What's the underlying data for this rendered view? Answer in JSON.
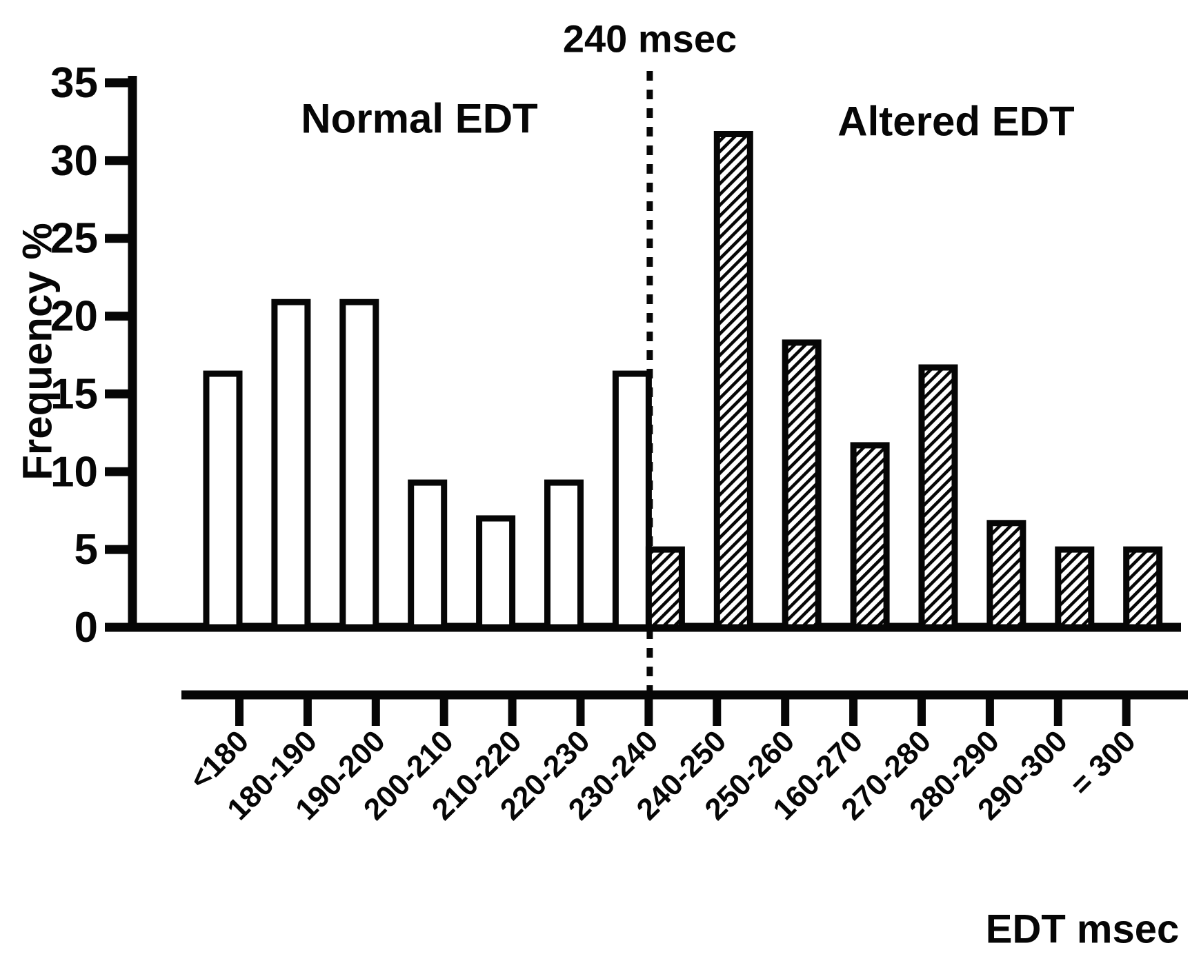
{
  "figure": {
    "background": "#ffffff",
    "ink": "#060606"
  },
  "chart_data": {
    "type": "bar",
    "title": "",
    "ylabel": "Frequency %",
    "xlabel": "EDT msec",
    "ylim": [
      0,
      35
    ],
    "yticks": [
      35,
      30,
      25,
      20,
      15,
      10,
      5,
      0
    ],
    "x_tick_labels": [
      "<180",
      "180-190",
      "190-200",
      "200-210",
      "210-220",
      "220-230",
      "230-240",
      "240-250",
      "250-260",
      "160-270",
      "270-280",
      "280-290",
      "290-300",
      "= 300"
    ],
    "grid": false,
    "legend": "none",
    "threshold": {
      "label": "240 msec",
      "at_x_tick": "230-240",
      "line_style": "dotted"
    },
    "regions": [
      {
        "label": "Normal EDT",
        "side": "left"
      },
      {
        "label": "Altered EDT",
        "side": "right"
      }
    ],
    "series": [
      {
        "name": "Normal EDT",
        "fill": "open",
        "bar_placement": "left-of-tick",
        "categories": [
          "<180",
          "180-190",
          "190-200",
          "200-210",
          "210-220",
          "220-230",
          "230-240"
        ],
        "values": [
          16.3,
          20.9,
          20.9,
          9.3,
          7.0,
          9.3,
          16.3
        ]
      },
      {
        "name": "Altered EDT",
        "fill": "hatched",
        "bar_placement": "right-of-tick",
        "categories": [
          "230-240",
          "240-250",
          "250-260",
          "160-270",
          "270-280",
          "280-290",
          "290-300",
          "= 300"
        ],
        "values": [
          5.0,
          31.7,
          18.3,
          11.7,
          16.7,
          6.7,
          5.0,
          5.0
        ]
      }
    ]
  }
}
